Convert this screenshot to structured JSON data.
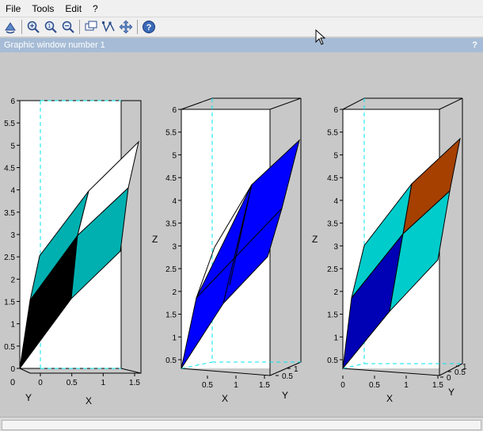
{
  "menu": {
    "file": "File",
    "tools": "Tools",
    "edit": "Edit",
    "help": "?"
  },
  "toolbar": {
    "icons": [
      "rotate-icon",
      "zoom-in-icon",
      "zoom-original-icon",
      "zoom-out-icon",
      "datatip-icon",
      "edit-curve-icon",
      "pan-icon",
      "help-icon"
    ]
  },
  "window": {
    "title": "Graphic window number 1",
    "help": "?"
  },
  "colors": {
    "cyan": "#00b0b0",
    "black": "#000000",
    "blue": "#0000ff",
    "darkblue": "#0000b4",
    "lightcyan": "#00cccc",
    "brown": "#a54000",
    "dashed": "#00e5ee"
  },
  "chart_data": [
    {
      "type": "surface3d",
      "zticks": [
        "0",
        "0.5",
        "1",
        "1.5",
        "2",
        "2.5",
        "3",
        "3.5",
        "4",
        "4.5",
        "5",
        "5.5",
        "6"
      ],
      "xticks": [
        "0",
        "0.5",
        "1",
        "1.5"
      ],
      "yticks": [
        "0"
      ],
      "xlabel": "X",
      "ylabel": "Y",
      "zlabel": "",
      "zlim": [
        0,
        6
      ],
      "facets": [
        "black",
        "cyan",
        "cyan",
        "white"
      ]
    },
    {
      "type": "surface3d",
      "zticks": [
        "0.5",
        "1",
        "1.5",
        "2",
        "2.5",
        "3",
        "3.5",
        "4",
        "4.5",
        "5",
        "5.5",
        "6"
      ],
      "xticks": [
        "0.5",
        "1",
        "1.5"
      ],
      "yticks": [
        "0.5",
        "1"
      ],
      "xlabel": "X",
      "ylabel": "Y",
      "zlabel": "Z",
      "zlim": [
        0.2,
        6
      ],
      "facets": [
        "blue",
        "blue",
        "blue",
        "blue"
      ]
    },
    {
      "type": "surface3d",
      "zticks": [
        "0.5",
        "1",
        "1.5",
        "2",
        "2.5",
        "3",
        "3.5",
        "4",
        "4.5",
        "5",
        "5.5",
        "6"
      ],
      "xticks": [
        "0",
        "0.5",
        "1",
        "1.5"
      ],
      "yticks": [
        "0",
        "0.5",
        "1"
      ],
      "xlabel": "X",
      "ylabel": "Y",
      "zlabel": "Z",
      "zlim": [
        0.2,
        6
      ],
      "facets": [
        "darkblue",
        "lightcyan",
        "lightcyan",
        "brown"
      ]
    }
  ]
}
